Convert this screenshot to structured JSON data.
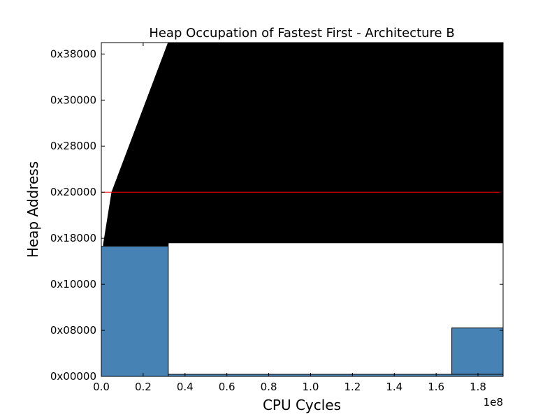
{
  "chart_data": {
    "type": "area",
    "title": "Heap Occupation of Fastest First - Architecture B",
    "xlabel": "CPU Cycles",
    "ylabel": "Heap Address",
    "x_offset_text": "1e8",
    "xlim": [
      0,
      1.92
    ],
    "ylim": [
      0,
      0.475
    ],
    "x_ticks": [
      {
        "value": 0.0,
        "label": "0.0"
      },
      {
        "value": 0.2,
        "label": "0.2"
      },
      {
        "value": 0.4,
        "label": "0.4"
      },
      {
        "value": 0.6,
        "label": "0.6"
      },
      {
        "value": 0.8,
        "label": "0.8"
      },
      {
        "value": 1.0,
        "label": "1.0"
      },
      {
        "value": 1.2,
        "label": "1.2"
      },
      {
        "value": 1.4,
        "label": "1.4"
      },
      {
        "value": 1.6,
        "label": "1.6"
      },
      {
        "value": 1.8,
        "label": "1.8"
      }
    ],
    "y_ticks": [
      {
        "value": 0.0,
        "label": "0x00000"
      },
      {
        "value": 0.0655,
        "label": "0x08000"
      },
      {
        "value": 0.131,
        "label": "0x10000"
      },
      {
        "value": 0.1966,
        "label": "0x18000"
      },
      {
        "value": 0.2621,
        "label": "0x20000"
      },
      {
        "value": 0.3277,
        "label": "0x28000"
      },
      {
        "value": 0.3932,
        "label": "0x30000"
      },
      {
        "value": 0.4588,
        "label": "0x38000"
      }
    ],
    "reference_line": {
      "y": 0.2621,
      "color": "#ff0000"
    },
    "regions": [
      {
        "name": "",
        "color": "#000000",
        "polygon": [
          [
            0.01,
            0.1875
          ],
          [
            0.05,
            0.2621
          ],
          [
            0.32,
            0.475
          ],
          [
            1.92,
            0.475
          ],
          [
            1.92,
            0.19
          ],
          [
            0.32,
            0.19
          ],
          [
            0.32,
            0.186
          ],
          [
            0.01,
            0.186
          ]
        ]
      },
      {
        "name": "",
        "color": "#4682b4",
        "polygon": [
          [
            0.0,
            0.0
          ],
          [
            0.0,
            0.185
          ],
          [
            0.32,
            0.185
          ],
          [
            0.32,
            0.0
          ]
        ]
      },
      {
        "name": "",
        "color": "#4682b4",
        "polygon": [
          [
            1.675,
            0.0
          ],
          [
            1.675,
            0.069
          ],
          [
            1.92,
            0.069
          ],
          [
            1.92,
            0.0
          ]
        ]
      },
      {
        "name": "",
        "color": "#4682b4",
        "polygon": [
          [
            0.32,
            0.0
          ],
          [
            0.32,
            0.003
          ],
          [
            1.92,
            0.003
          ],
          [
            1.92,
            0.0
          ]
        ]
      }
    ],
    "grid": false,
    "legend": "none"
  }
}
